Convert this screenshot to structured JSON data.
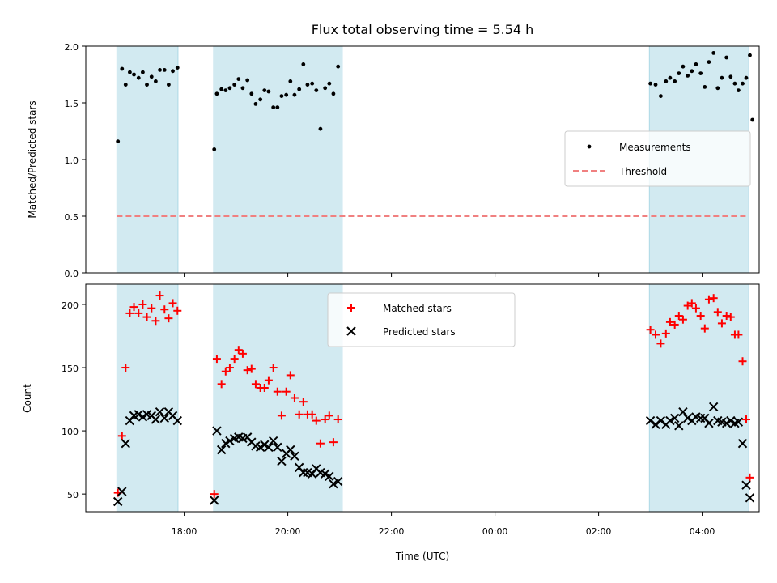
{
  "chart_data": [
    {
      "type": "scatter",
      "title": "Flux total observing time = 5.54 h",
      "ylabel": "Matched/Predicted stars",
      "ylim": [
        0,
        2
      ],
      "yticks": [
        "0.0",
        "0.5",
        "1.0",
        "1.5",
        "2.0"
      ],
      "ytick_values": [
        0,
        0.5,
        1.0,
        1.5,
        2.0
      ],
      "xlim_hours": [
        16.1,
        29.1
      ],
      "legend_position": "center-right",
      "legend": [
        "Measurements",
        "Threshold"
      ],
      "threshold": 0.5,
      "colors": {
        "points": "#000000",
        "threshold": "#f08080",
        "span": "#add8e6"
      },
      "spans_hours": [
        [
          16.7,
          17.88
        ],
        [
          18.57,
          21.05
        ],
        [
          26.98,
          28.9
        ]
      ],
      "points": [
        [
          16.72,
          1.16
        ],
        [
          16.8,
          1.8
        ],
        [
          16.87,
          1.66
        ],
        [
          16.95,
          1.77
        ],
        [
          17.03,
          1.75
        ],
        [
          17.12,
          1.72
        ],
        [
          17.2,
          1.77
        ],
        [
          17.28,
          1.66
        ],
        [
          17.37,
          1.73
        ],
        [
          17.45,
          1.69
        ],
        [
          17.53,
          1.79
        ],
        [
          17.62,
          1.79
        ],
        [
          17.7,
          1.66
        ],
        [
          17.78,
          1.78
        ],
        [
          17.87,
          1.81
        ],
        [
          18.58,
          1.09
        ],
        [
          18.63,
          1.58
        ],
        [
          18.72,
          1.62
        ],
        [
          18.8,
          1.61
        ],
        [
          18.88,
          1.63
        ],
        [
          18.97,
          1.66
        ],
        [
          19.05,
          1.71
        ],
        [
          19.13,
          1.63
        ],
        [
          19.22,
          1.7
        ],
        [
          19.3,
          1.58
        ],
        [
          19.38,
          1.49
        ],
        [
          19.47,
          1.53
        ],
        [
          19.55,
          1.61
        ],
        [
          19.63,
          1.6
        ],
        [
          19.72,
          1.46
        ],
        [
          19.8,
          1.46
        ],
        [
          19.88,
          1.56
        ],
        [
          19.97,
          1.57
        ],
        [
          20.05,
          1.69
        ],
        [
          20.13,
          1.57
        ],
        [
          20.22,
          1.62
        ],
        [
          20.3,
          1.84
        ],
        [
          20.38,
          1.66
        ],
        [
          20.47,
          1.67
        ],
        [
          20.55,
          1.61
        ],
        [
          20.63,
          1.27
        ],
        [
          20.72,
          1.63
        ],
        [
          20.8,
          1.67
        ],
        [
          20.88,
          1.58
        ],
        [
          20.97,
          1.82
        ],
        [
          27.0,
          1.67
        ],
        [
          27.1,
          1.66
        ],
        [
          27.2,
          1.56
        ],
        [
          27.3,
          1.69
        ],
        [
          27.38,
          1.72
        ],
        [
          27.47,
          1.69
        ],
        [
          27.55,
          1.76
        ],
        [
          27.63,
          1.82
        ],
        [
          27.72,
          1.74
        ],
        [
          27.8,
          1.78
        ],
        [
          27.88,
          1.84
        ],
        [
          27.97,
          1.76
        ],
        [
          28.05,
          1.64
        ],
        [
          28.13,
          1.86
        ],
        [
          28.22,
          1.94
        ],
        [
          28.3,
          1.63
        ],
        [
          28.38,
          1.72
        ],
        [
          28.47,
          1.9
        ],
        [
          28.55,
          1.73
        ],
        [
          28.63,
          1.67
        ],
        [
          28.7,
          1.61
        ],
        [
          28.78,
          1.67
        ],
        [
          28.85,
          1.72
        ],
        [
          28.92,
          1.92
        ],
        [
          28.97,
          1.35
        ]
      ]
    },
    {
      "type": "scatter",
      "xlabel": "Time (UTC)",
      "ylabel": "Count",
      "ylim": [
        36,
        216
      ],
      "yticks": [
        "50",
        "100",
        "150",
        "200"
      ],
      "ytick_values": [
        50,
        100,
        150,
        200
      ],
      "xticks": [
        "18:00",
        "20:00",
        "22:00",
        "00:00",
        "02:00",
        "04:00"
      ],
      "xtick_hours": [
        18,
        20,
        22,
        24,
        26,
        28
      ],
      "legend_position": "upper-center",
      "series": [
        {
          "name": "Matched stars",
          "marker": "plus",
          "color": "#ff0000",
          "points": [
            [
              16.72,
              51
            ],
            [
              16.8,
              96
            ],
            [
              16.87,
              150
            ],
            [
              16.95,
              193
            ],
            [
              17.03,
              198
            ],
            [
              17.12,
              193
            ],
            [
              17.2,
              200
            ],
            [
              17.28,
              190
            ],
            [
              17.37,
              197
            ],
            [
              17.45,
              187
            ],
            [
              17.53,
              207
            ],
            [
              17.62,
              196
            ],
            [
              17.7,
              189
            ],
            [
              17.78,
              201
            ],
            [
              17.87,
              195
            ],
            [
              18.58,
              50
            ],
            [
              18.63,
              157
            ],
            [
              18.72,
              137
            ],
            [
              18.8,
              147
            ],
            [
              18.88,
              150
            ],
            [
              18.97,
              157
            ],
            [
              19.05,
              164
            ],
            [
              19.13,
              161
            ],
            [
              19.22,
              148
            ],
            [
              19.3,
              149
            ],
            [
              19.38,
              137
            ],
            [
              19.47,
              134
            ],
            [
              19.55,
              134
            ],
            [
              19.63,
              140
            ],
            [
              19.72,
              150
            ],
            [
              19.8,
              131
            ],
            [
              19.88,
              112
            ],
            [
              19.97,
              131
            ],
            [
              20.05,
              144
            ],
            [
              20.13,
              126
            ],
            [
              20.22,
              113
            ],
            [
              20.3,
              123
            ],
            [
              20.38,
              113
            ],
            [
              20.47,
              113
            ],
            [
              20.55,
              108
            ],
            [
              20.63,
              90
            ],
            [
              20.72,
              109
            ],
            [
              20.8,
              112
            ],
            [
              20.88,
              91
            ],
            [
              20.97,
              109
            ],
            [
              27.0,
              180
            ],
            [
              27.1,
              176
            ],
            [
              27.2,
              169
            ],
            [
              27.3,
              177
            ],
            [
              27.38,
              186
            ],
            [
              27.47,
              184
            ],
            [
              27.55,
              191
            ],
            [
              27.63,
              188
            ],
            [
              27.72,
              199
            ],
            [
              27.8,
              201
            ],
            [
              27.88,
              197
            ],
            [
              27.97,
              191
            ],
            [
              28.05,
              181
            ],
            [
              28.13,
              204
            ],
            [
              28.22,
              205
            ],
            [
              28.3,
              194
            ],
            [
              28.38,
              185
            ],
            [
              28.47,
              191
            ],
            [
              28.55,
              190
            ],
            [
              28.63,
              176
            ],
            [
              28.7,
              176
            ],
            [
              28.78,
              155
            ],
            [
              28.85,
              109
            ],
            [
              28.92,
              63
            ]
          ]
        },
        {
          "name": "Predicted stars",
          "marker": "x",
          "color": "#000000",
          "points": [
            [
              16.72,
              44
            ],
            [
              16.8,
              52
            ],
            [
              16.87,
              90
            ],
            [
              16.95,
              108
            ],
            [
              17.03,
              112
            ],
            [
              17.12,
              113
            ],
            [
              17.2,
              111
            ],
            [
              17.28,
              113
            ],
            [
              17.37,
              112
            ],
            [
              17.45,
              109
            ],
            [
              17.53,
              115
            ],
            [
              17.62,
              110
            ],
            [
              17.7,
              115
            ],
            [
              17.78,
              112
            ],
            [
              17.87,
              108
            ],
            [
              18.58,
              45
            ],
            [
              18.63,
              100
            ],
            [
              18.72,
              85
            ],
            [
              18.8,
              90
            ],
            [
              18.88,
              92
            ],
            [
              18.97,
              94
            ],
            [
              19.05,
              95
            ],
            [
              19.13,
              94
            ],
            [
              19.22,
              95
            ],
            [
              19.3,
              91
            ],
            [
              19.38,
              88
            ],
            [
              19.47,
              87
            ],
            [
              19.55,
              89
            ],
            [
              19.63,
              87
            ],
            [
              19.72,
              92
            ],
            [
              19.8,
              87
            ],
            [
              19.88,
              76
            ],
            [
              19.97,
              82
            ],
            [
              20.05,
              85
            ],
            [
              20.13,
              80
            ],
            [
              20.22,
              71
            ],
            [
              20.3,
              67
            ],
            [
              20.38,
              67
            ],
            [
              20.47,
              66
            ],
            [
              20.55,
              70
            ],
            [
              20.63,
              67
            ],
            [
              20.72,
              66
            ],
            [
              20.8,
              64
            ],
            [
              20.88,
              58
            ],
            [
              20.97,
              60
            ],
            [
              27.0,
              108
            ],
            [
              27.1,
              105
            ],
            [
              27.2,
              108
            ],
            [
              27.3,
              105
            ],
            [
              27.38,
              108
            ],
            [
              27.47,
              110
            ],
            [
              27.55,
              104
            ],
            [
              27.63,
              115
            ],
            [
              27.72,
              110
            ],
            [
              27.8,
              108
            ],
            [
              27.88,
              111
            ],
            [
              27.97,
              110
            ],
            [
              28.05,
              110
            ],
            [
              28.13,
              106
            ],
            [
              28.22,
              119
            ],
            [
              28.3,
              108
            ],
            [
              28.38,
              107
            ],
            [
              28.47,
              106
            ],
            [
              28.55,
              108
            ],
            [
              28.63,
              106
            ],
            [
              28.7,
              107
            ],
            [
              28.78,
              90
            ],
            [
              28.85,
              57
            ],
            [
              28.92,
              47
            ]
          ]
        }
      ],
      "colors": {
        "span": "#add8e6"
      },
      "spans_hours": [
        [
          16.7,
          17.88
        ],
        [
          18.57,
          21.05
        ],
        [
          26.98,
          28.9
        ]
      ]
    }
  ]
}
